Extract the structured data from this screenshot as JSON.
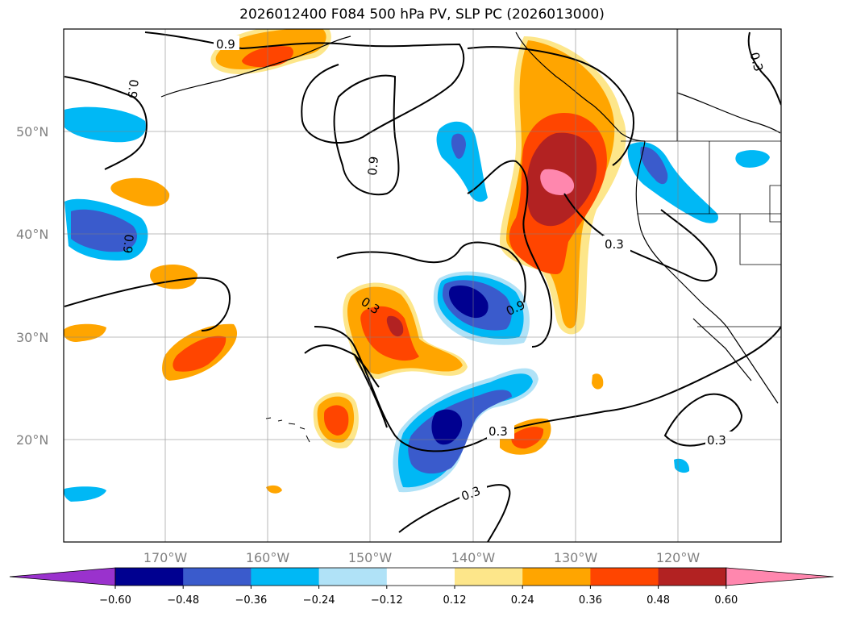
{
  "title": "2026012400 F084 500 hPa PV, SLP PC (2026013000)",
  "map": {
    "lat_labels": [
      "50°N",
      "40°N",
      "30°N",
      "20°N"
    ],
    "lon_labels": [
      "170°W",
      "160°W",
      "150°W",
      "140°W",
      "130°W",
      "120°W"
    ],
    "contour_labels": [
      "0.9",
      "0.9",
      "0.9",
      "0.9",
      "0.3",
      "0.3",
      "0.9",
      "0.3",
      "0.3",
      "0.3",
      "0.3"
    ]
  },
  "colorbar": {
    "ticks": [
      "−0.60",
      "−0.48",
      "−0.36",
      "−0.24",
      "−0.12",
      "0.12",
      "0.24",
      "0.36",
      "0.48",
      "0.60"
    ],
    "colors": [
      "#9a32cd",
      "#000090",
      "#3a5bcc",
      "#00b8f5",
      "#b0e2f7",
      "#ffffff",
      "#fde68a",
      "#ffa500",
      "#ff4500",
      "#b22222",
      "#ff87ae"
    ]
  },
  "colors": {
    "neg_strong": "#000090",
    "neg_mid": "#3a5bcc",
    "neg_light": "#00b8f5",
    "pos_light": "#fde68a",
    "pos_mid": "#ffa500",
    "pos_strong": "#ff4500",
    "pos_dark": "#b22222",
    "pos_max": "#ff87ae"
  }
}
